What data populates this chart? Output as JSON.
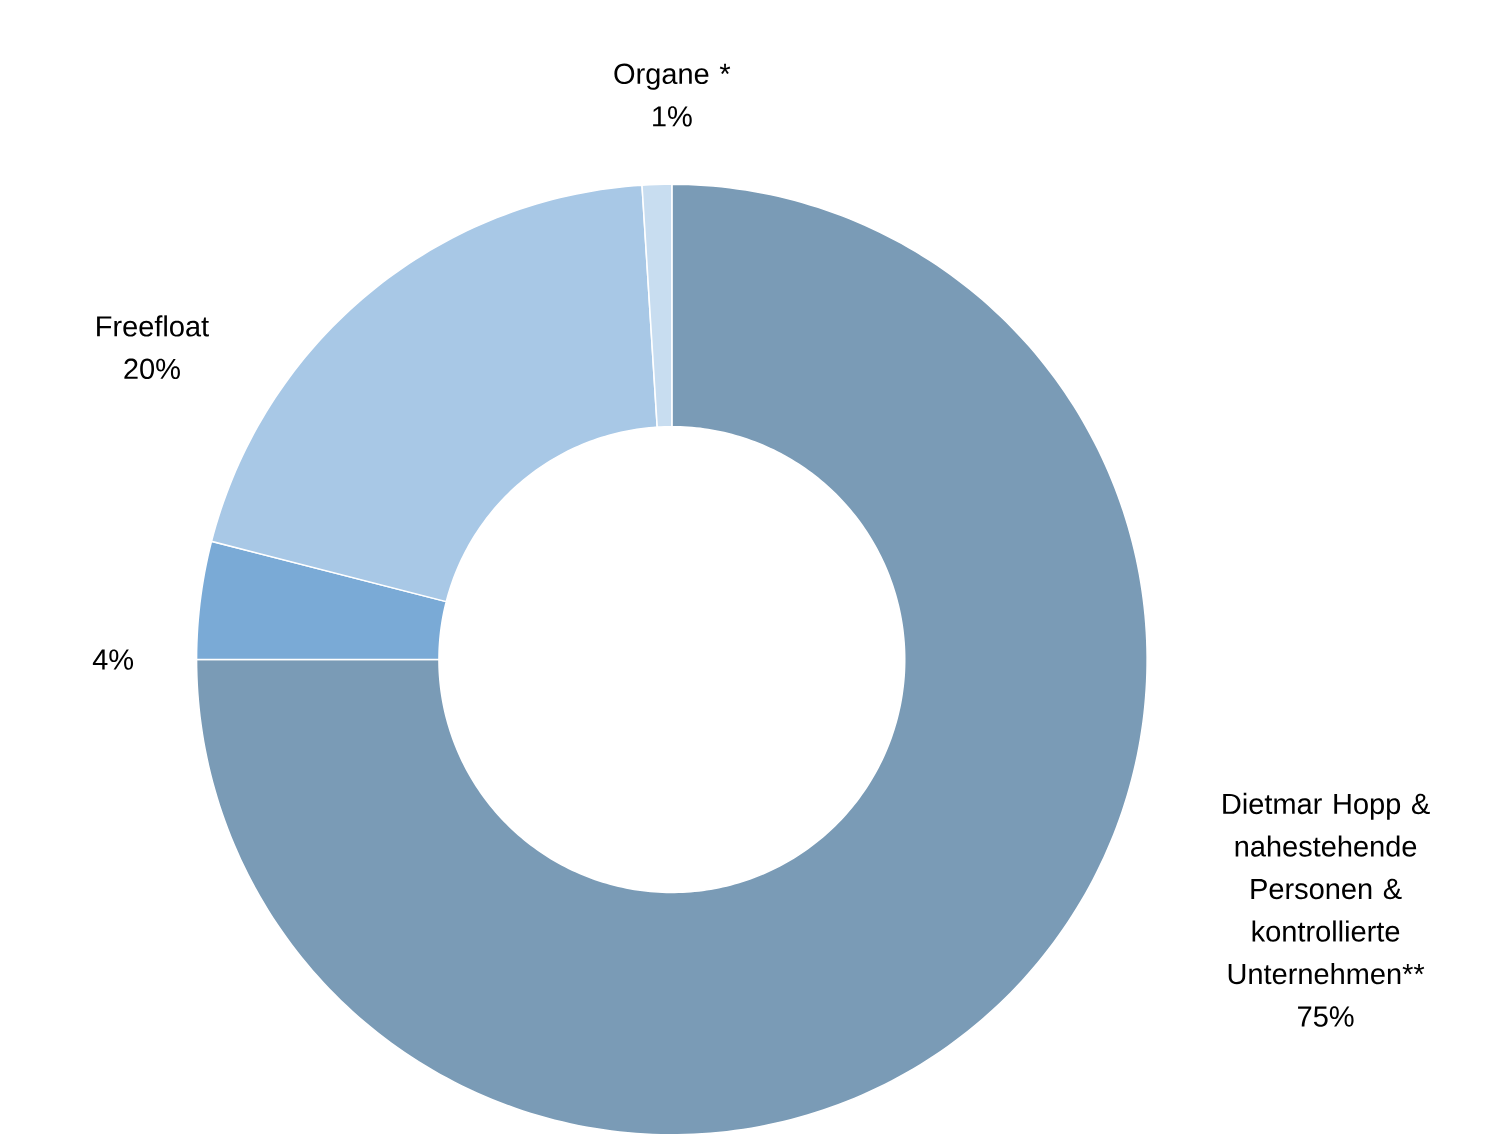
{
  "chart_data": {
    "type": "donut",
    "categories": [
      "Dietmar Hopp & nahestehende Personen & kontrollierte Unternehmen**",
      null,
      "Freefloat",
      "Organe *"
    ],
    "values": [
      75,
      4,
      20,
      1
    ],
    "value_labels": [
      "75%",
      "4%",
      "20%",
      "1%"
    ],
    "colors": [
      "#7a9bb6",
      "#7aaad6",
      "#a8c8e6",
      "#c8ddf0"
    ]
  }
}
